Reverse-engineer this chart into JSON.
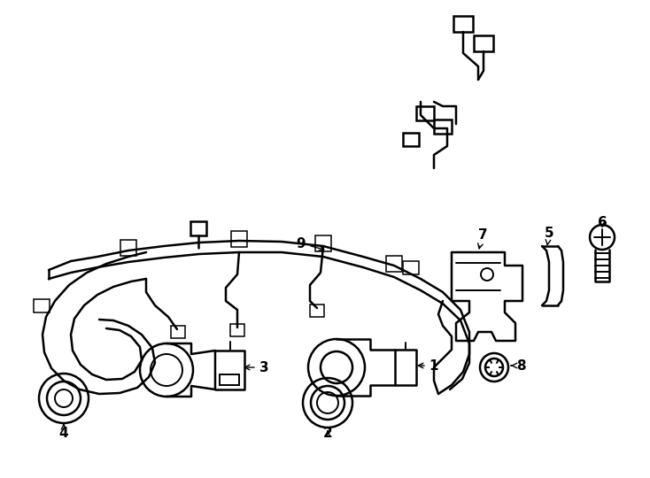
{
  "bg_color": "#ffffff",
  "line_color": "#000000",
  "lw_main": 1.4,
  "lw_thin": 1.0,
  "fig_width": 7.34,
  "fig_height": 5.4,
  "dpi": 100
}
